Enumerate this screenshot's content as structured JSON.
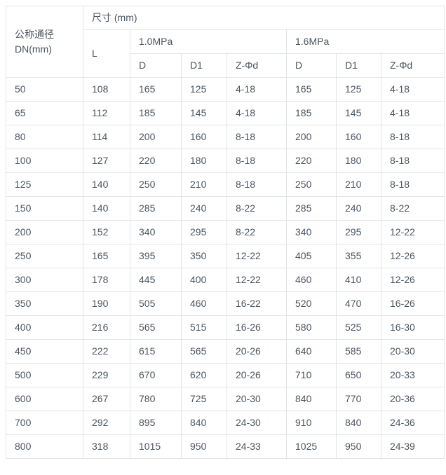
{
  "table": {
    "corner_header": {
      "line1": "公称通径",
      "line2": "DN(mm)"
    },
    "size_header": "尺寸 (mm)",
    "l_header": "L",
    "group_headers": [
      "1.0MPa",
      "1.6MPa"
    ],
    "sub_headers": [
      "D",
      "D1",
      "Z-Φd",
      "D",
      "D1",
      "Z-Φd"
    ],
    "rows": [
      [
        "50",
        "108",
        "165",
        "125",
        "4-18",
        "165",
        "125",
        "4-18"
      ],
      [
        "65",
        "112",
        "185",
        "145",
        "4-18",
        "185",
        "145",
        "4-18"
      ],
      [
        "80",
        "114",
        "200",
        "160",
        "8-18",
        "200",
        "160",
        "8-18"
      ],
      [
        "100",
        "127",
        "220",
        "180",
        "8-18",
        "220",
        "180",
        "8-18"
      ],
      [
        "125",
        "140",
        "250",
        "210",
        "8-18",
        "250",
        "210",
        "8-18"
      ],
      [
        "150",
        "140",
        "285",
        "240",
        "8-22",
        "285",
        "240",
        "8-22"
      ],
      [
        "200",
        "152",
        "340",
        "295",
        "8-22",
        "340",
        "295",
        "12-22"
      ],
      [
        "250",
        "165",
        "395",
        "350",
        "12-22",
        "405",
        "355",
        "12-26"
      ],
      [
        "300",
        "178",
        "445",
        "400",
        "12-22",
        "460",
        "410",
        "12-26"
      ],
      [
        "350",
        "190",
        "505",
        "460",
        "16-22",
        "520",
        "470",
        "16-26"
      ],
      [
        "400",
        "216",
        "565",
        "515",
        "16-26",
        "580",
        "525",
        "16-30"
      ],
      [
        "450",
        "222",
        "615",
        "565",
        "20-26",
        "640",
        "585",
        "20-30"
      ],
      [
        "500",
        "229",
        "670",
        "620",
        "20-26",
        "710",
        "650",
        "20-33"
      ],
      [
        "600",
        "267",
        "780",
        "725",
        "20-30",
        "840",
        "770",
        "20-36"
      ],
      [
        "700",
        "292",
        "895",
        "840",
        "24-30",
        "910",
        "840",
        "24-36"
      ],
      [
        "800",
        "318",
        "1015",
        "950",
        "24-33",
        "1025",
        "950",
        "24-39"
      ]
    ],
    "colors": {
      "border": "#e2e5e8",
      "text": "#4c5560",
      "background": "#ffffff"
    }
  }
}
